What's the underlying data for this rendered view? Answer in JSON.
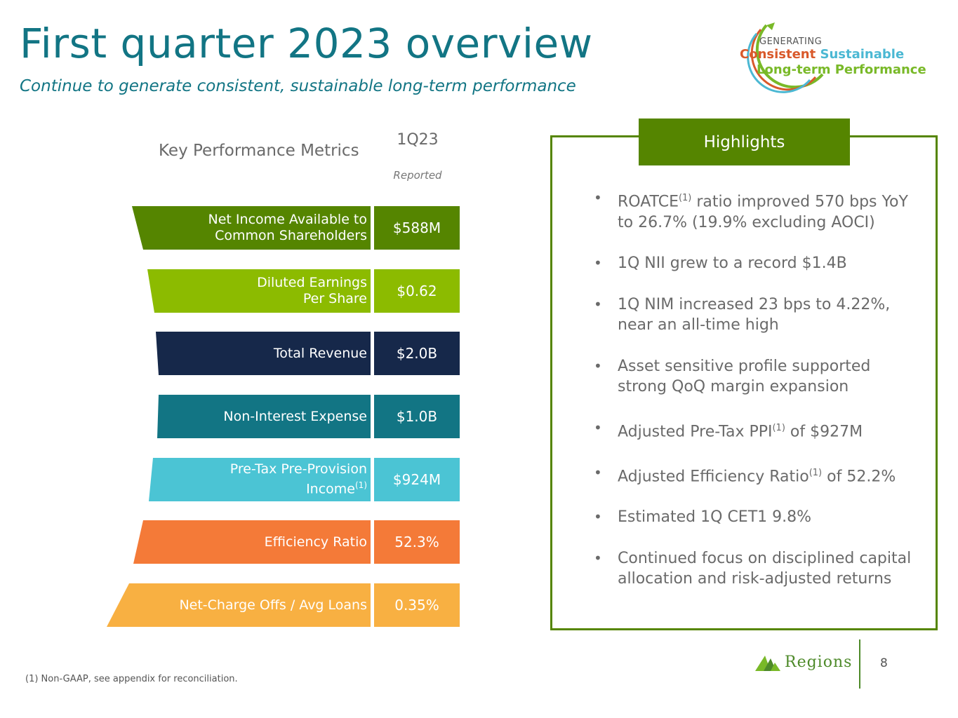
{
  "header": {
    "title": "First quarter 2023 overview",
    "subtitle": "Continue to generate consistent, sustainable long-term performance"
  },
  "logo": {
    "generating": "GENERATING",
    "consistent": "Consistent",
    "sustainable": "Sustainable",
    "line2": "Long-term Performance"
  },
  "metrics": {
    "title": "Key Performance Metrics",
    "column_title": "1Q23",
    "column_subtitle": "Reported",
    "rows": [
      {
        "label_line1": "Net Income Available to",
        "label_line2": "Common Shareholders",
        "value": "$588M",
        "color": "#558500"
      },
      {
        "label_line1": "Diluted Earnings",
        "label_line2": "Per Share",
        "value": "$0.62",
        "color": "#8cbb00"
      },
      {
        "label": "Total Revenue",
        "value": "$2.0B",
        "color": "#16284a"
      },
      {
        "label": "Non-Interest Expense",
        "value": "$1.0B",
        "color": "#127584"
      },
      {
        "label_line1": "Pre-Tax Pre-Provision",
        "label_line2": "Income",
        "sup": "(1)",
        "value": "$924M",
        "color": "#4bc4d4"
      },
      {
        "label": "Efficiency Ratio",
        "value": "52.3%",
        "color": "#f47a38"
      },
      {
        "label": "Net-Charge Offs / Avg Loans",
        "value": "0.35%",
        "color": "#f8b042"
      }
    ]
  },
  "highlights": {
    "title": "Highlights",
    "items": [
      {
        "pre": "ROATCE",
        "sup": "(1)",
        "post": " ratio improved 570 bps YoY to 26.7% (19.9% excluding AOCI)"
      },
      {
        "text": "1Q NII grew to a record $1.4B"
      },
      {
        "text": "1Q NIM increased 23 bps to 4.22%, near an all-time high"
      },
      {
        "text": "Asset sensitive profile supported strong QoQ margin expansion"
      },
      {
        "pre": "Adjusted Pre-Tax PPI",
        "sup": "(1)",
        "post": " of $927M"
      },
      {
        "pre": "Adjusted Efficiency Ratio",
        "sup": "(1)",
        "post": " of 52.2%"
      },
      {
        "text": "Estimated 1Q CET1 9.8%"
      },
      {
        "text": "Continued focus on disciplined capital allocation and risk-adjusted returns"
      }
    ]
  },
  "footer": {
    "footnote": "(1) Non-GAAP, see appendix for reconciliation.",
    "brand": "Regions",
    "page": "8"
  }
}
